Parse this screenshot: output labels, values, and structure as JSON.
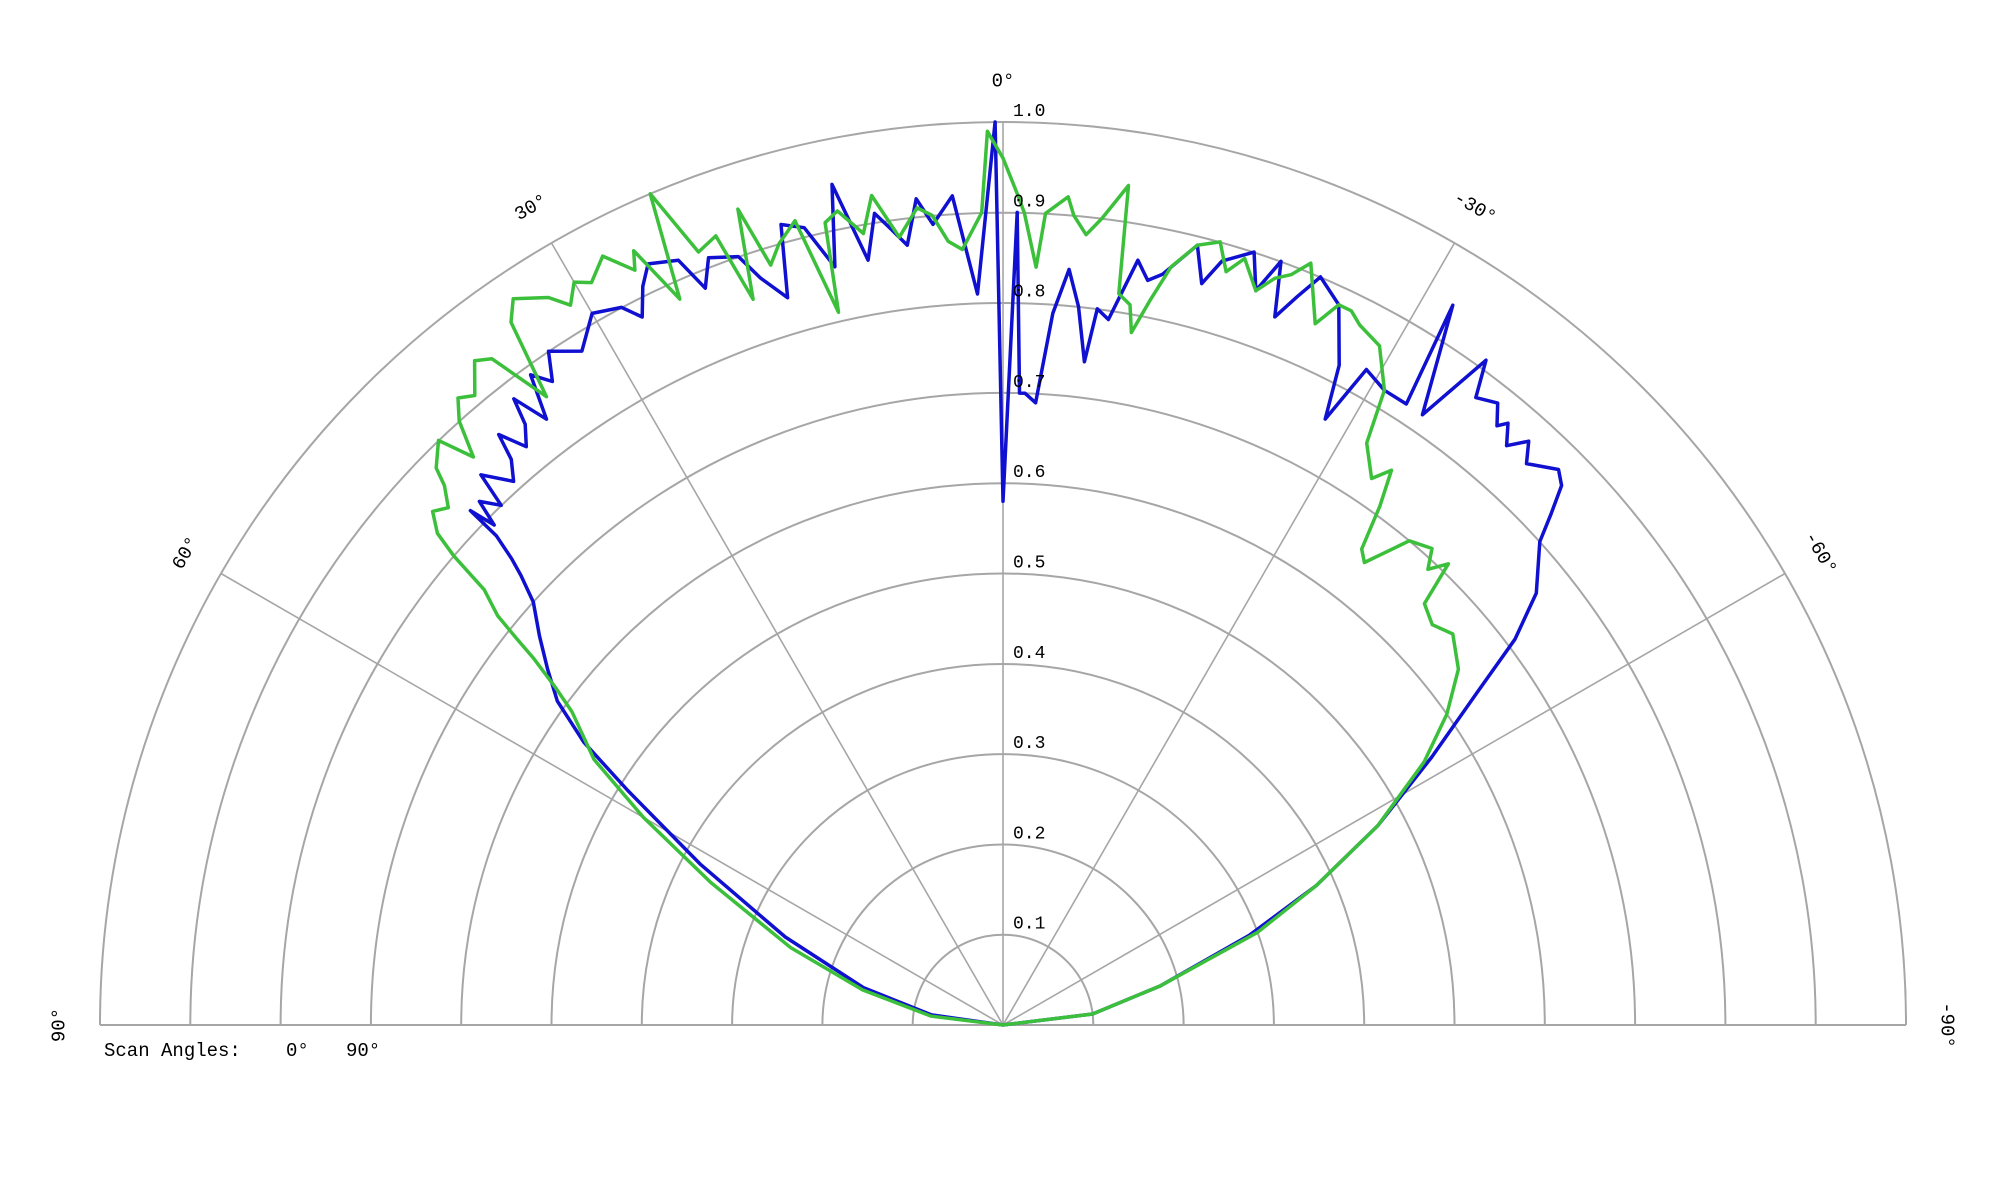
{
  "chart_data": {
    "type": "line",
    "projection": "polar",
    "theta_unit": "degrees",
    "theta_range": [
      -90,
      90
    ],
    "theta_direction": "counterclockwise from top",
    "theta_ticks": [
      {
        "value": 0,
        "label": "0°"
      },
      {
        "value": 30,
        "label": "30°"
      },
      {
        "value": -30,
        "label": "-30°"
      },
      {
        "value": 60,
        "label": "60°"
      },
      {
        "value": -60,
        "label": "-60°"
      },
      {
        "value": 90,
        "label": "90°"
      },
      {
        "value": -90,
        "label": "-90°"
      }
    ],
    "r_range": [
      0,
      1.0
    ],
    "r_ticks": [
      {
        "value": 0.1,
        "label": "0.1"
      },
      {
        "value": 0.2,
        "label": "0.2"
      },
      {
        "value": 0.3,
        "label": "0.3"
      },
      {
        "value": 0.4,
        "label": "0.4"
      },
      {
        "value": 0.5,
        "label": "0.5"
      },
      {
        "value": 0.6,
        "label": "0.6"
      },
      {
        "value": 0.7,
        "label": "0.7"
      },
      {
        "value": 0.8,
        "label": "0.8"
      },
      {
        "value": 0.9,
        "label": "0.9"
      },
      {
        "value": 1.0,
        "label": "1.0"
      }
    ],
    "grid": true,
    "legend": {
      "title": "Scan Angles:",
      "placement": "bottom-left"
    },
    "series": [
      {
        "name": "0°",
        "color": "#1010d0",
        "points": [
          [
            90,
            0.0
          ],
          [
            82,
            0.08
          ],
          [
            75,
            0.16
          ],
          [
            68,
            0.26
          ],
          [
            62,
            0.38
          ],
          [
            58,
            0.49
          ],
          [
            56,
            0.56
          ],
          [
            54,
            0.61
          ],
          [
            52,
            0.64
          ],
          [
            50,
            0.67
          ],
          [
            48,
            0.7
          ],
          [
            47,
            0.73
          ],
          [
            46.5,
            0.75
          ],
          [
            46,
            0.78
          ],
          [
            46,
            0.82
          ],
          [
            45.5,
            0.79
          ],
          [
            45,
            0.82
          ],
          [
            44,
            0.8
          ],
          [
            43.5,
            0.84
          ],
          [
            42,
            0.81
          ],
          [
            41,
            0.83
          ],
          [
            40.5,
            0.86
          ],
          [
            39.5,
            0.83
          ],
          [
            38.5,
            0.85
          ],
          [
            38,
            0.88
          ],
          [
            37,
            0.84
          ],
          [
            36,
            0.89
          ],
          [
            35,
            0.87
          ],
          [
            34,
            0.9
          ],
          [
            32,
            0.88
          ],
          [
            30,
            0.91
          ],
          [
            28,
            0.9
          ],
          [
            27,
            0.88
          ],
          [
            26,
            0.91
          ],
          [
            25,
            0.93
          ],
          [
            23,
            0.92
          ],
          [
            22,
            0.88
          ],
          [
            21,
            0.91
          ],
          [
            19,
            0.9
          ],
          [
            18,
            0.87
          ],
          [
            16.5,
            0.84
          ],
          [
            15.5,
            0.92
          ],
          [
            14,
            0.91
          ],
          [
            12.5,
            0.86
          ],
          [
            11.5,
            0.95
          ],
          [
            10,
            0.86
          ],
          [
            9,
            0.91
          ],
          [
            8,
            0.89
          ],
          [
            7,
            0.87
          ],
          [
            6,
            0.92
          ],
          [
            5,
            0.89
          ],
          [
            3.5,
            0.92
          ],
          [
            2,
            0.81
          ],
          [
            0.5,
            1.0
          ],
          [
            0,
            0.58
          ],
          [
            -1,
            0.9
          ],
          [
            -1.5,
            0.7
          ],
          [
            -2,
            0.7
          ],
          [
            -3,
            0.69
          ],
          [
            -4,
            0.79
          ],
          [
            -5,
            0.84
          ],
          [
            -6,
            0.8
          ],
          [
            -7,
            0.74
          ],
          [
            -7.5,
            0.8
          ],
          [
            -8.5,
            0.79
          ],
          [
            -10,
            0.86
          ],
          [
            -11,
            0.84
          ],
          [
            -12,
            0.85
          ],
          [
            -14,
            0.89
          ],
          [
            -15,
            0.85
          ],
          [
            -16,
            0.88
          ],
          [
            -18,
            0.9
          ],
          [
            -19,
            0.86
          ],
          [
            -20,
            0.9
          ],
          [
            -21,
            0.84
          ],
          [
            -22,
            0.87
          ],
          [
            -23,
            0.9
          ],
          [
            -25,
            0.88
          ],
          [
            -27,
            0.82
          ],
          [
            -28,
            0.76
          ],
          [
            -29,
            0.83
          ],
          [
            -31,
            0.82
          ],
          [
            -33,
            0.82
          ],
          [
            -32,
            0.94
          ],
          [
            -34.5,
            0.82
          ],
          [
            -36,
            0.91
          ],
          [
            -37,
            0.87
          ],
          [
            -38.5,
            0.88
          ],
          [
            -39.5,
            0.86
          ],
          [
            -40,
            0.87
          ],
          [
            -41,
            0.85
          ],
          [
            -42,
            0.87
          ],
          [
            -43,
            0.85
          ],
          [
            -45,
            0.87
          ],
          [
            -46,
            0.86
          ],
          [
            -47,
            0.83
          ],
          [
            -48,
            0.8
          ],
          [
            -51,
            0.76
          ],
          [
            -53,
            0.71
          ],
          [
            -55,
            0.64
          ],
          [
            -58,
            0.56
          ],
          [
            -62,
            0.47
          ],
          [
            -66,
            0.38
          ],
          [
            -70,
            0.29
          ],
          [
            -76,
            0.18
          ],
          [
            -83,
            0.1
          ],
          [
            -90,
            0.0
          ]
        ]
      },
      {
        "name": "90°",
        "color": "#3cc03c",
        "points": [
          [
            90,
            0.0
          ],
          [
            83,
            0.08
          ],
          [
            76,
            0.16
          ],
          [
            70,
            0.25
          ],
          [
            64,
            0.36
          ],
          [
            60,
            0.46
          ],
          [
            57,
            0.54
          ],
          [
            54,
            0.59
          ],
          [
            53,
            0.62
          ],
          [
            52,
            0.66
          ],
          [
            51.5,
            0.69
          ],
          [
            51,
            0.72
          ],
          [
            50,
            0.75
          ],
          [
            49.5,
            0.8
          ],
          [
            49,
            0.83
          ],
          [
            48,
            0.85
          ],
          [
            47,
            0.84
          ],
          [
            46,
            0.86
          ],
          [
            45.5,
            0.88
          ],
          [
            44,
            0.9
          ],
          [
            43,
            0.86
          ],
          [
            42,
            0.9
          ],
          [
            41,
            0.92
          ],
          [
            40,
            0.91
          ],
          [
            38.5,
            0.94
          ],
          [
            37.5,
            0.93
          ],
          [
            36,
            0.86
          ],
          [
            35,
            0.95
          ],
          [
            34,
            0.97
          ],
          [
            32,
            0.95
          ],
          [
            31,
            0.93
          ],
          [
            30,
            0.95
          ],
          [
            29,
            0.94
          ],
          [
            27.5,
            0.96
          ],
          [
            26,
            0.93
          ],
          [
            25.5,
            0.95
          ],
          [
            24,
            0.88
          ],
          [
            23,
            1.0
          ],
          [
            21.5,
            0.92
          ],
          [
            20,
            0.93
          ],
          [
            19,
            0.85
          ],
          [
            18,
            0.95
          ],
          [
            17,
            0.88
          ],
          [
            16,
            0.9
          ],
          [
            14.5,
            0.92
          ],
          [
            13,
            0.81
          ],
          [
            12.5,
            0.91
          ],
          [
            11.5,
            0.92
          ],
          [
            10,
            0.89
          ],
          [
            9,
            0.93
          ],
          [
            7.5,
            0.88
          ],
          [
            6,
            0.91
          ],
          [
            5,
            0.9
          ],
          [
            4,
            0.87
          ],
          [
            3,
            0.86
          ],
          [
            1.5,
            0.9
          ],
          [
            1,
            0.99
          ],
          [
            0,
            0.96
          ],
          [
            -1,
            0.92
          ],
          [
            -1.5,
            0.9
          ],
          [
            -2.5,
            0.84
          ],
          [
            -3,
            0.9
          ],
          [
            -4.5,
            0.92
          ],
          [
            -5,
            0.9
          ],
          [
            -6,
            0.88
          ],
          [
            -7,
            0.9
          ],
          [
            -8.5,
            0.94
          ],
          [
            -9,
            0.82
          ],
          [
            -10,
            0.81
          ],
          [
            -10.5,
            0.78
          ],
          [
            -11.5,
            0.82
          ],
          [
            -12.5,
            0.86
          ],
          [
            -14,
            0.89
          ],
          [
            -15.5,
            0.9
          ],
          [
            -16.5,
            0.87
          ],
          [
            -17.5,
            0.89
          ],
          [
            -19,
            0.86
          ],
          [
            -20,
            0.88
          ],
          [
            -21,
            0.89
          ],
          [
            -22,
            0.91
          ],
          [
            -24,
            0.85
          ],
          [
            -25,
            0.88
          ],
          [
            -26,
            0.88
          ],
          [
            -27,
            0.87
          ],
          [
            -29,
            0.86
          ],
          [
            -31,
            0.82
          ],
          [
            -32,
            0.76
          ],
          [
            -34,
            0.73
          ],
          [
            -35,
            0.75
          ],
          [
            -36,
            0.71
          ],
          [
            -37,
            0.66
          ],
          [
            -38,
            0.65
          ],
          [
            -40,
            0.7
          ],
          [
            -42,
            0.71
          ],
          [
            -43,
            0.69
          ],
          [
            -44,
            0.71
          ],
          [
            -45,
            0.66
          ],
          [
            -47,
            0.65
          ],
          [
            -49,
            0.66
          ],
          [
            -52,
            0.64
          ],
          [
            -55,
            0.6
          ],
          [
            -58,
            0.55
          ],
          [
            -62,
            0.47
          ],
          [
            -66,
            0.38
          ],
          [
            -70,
            0.3
          ],
          [
            -76,
            0.18
          ],
          [
            -83,
            0.1
          ],
          [
            -90,
            0.0
          ]
        ]
      }
    ]
  }
}
